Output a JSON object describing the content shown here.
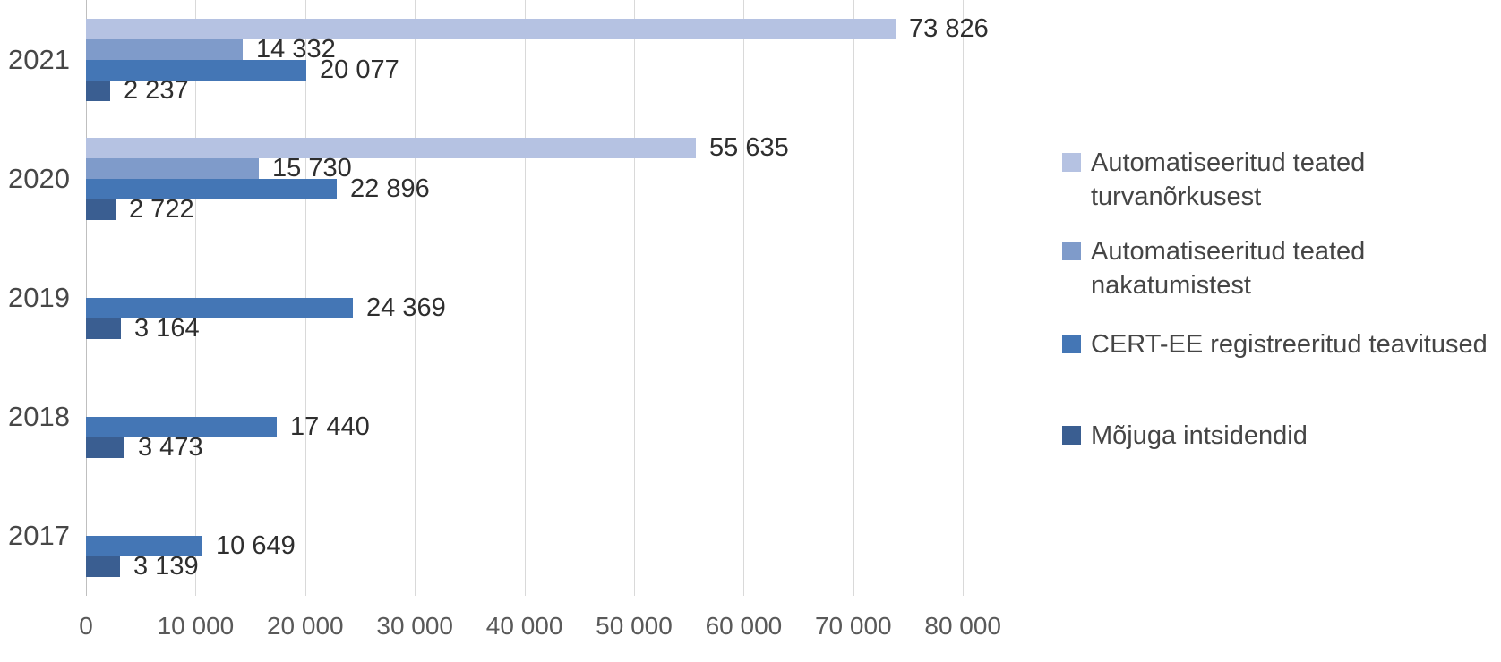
{
  "chart_data": {
    "type": "bar",
    "orientation": "horizontal",
    "title": "",
    "categories": [
      "2021",
      "2020",
      "2019",
      "2018",
      "2017"
    ],
    "series": [
      {
        "name": "Automatiseeritud teated turvanõrkusest",
        "color": "#b5c2e2",
        "values": [
          73826,
          55635,
          null,
          null,
          null
        ],
        "labels": [
          "73 826",
          "55 635",
          null,
          null,
          null
        ]
      },
      {
        "name": "Automatiseeritud teated nakatumistest",
        "color": "#7f9bca",
        "values": [
          14332,
          15730,
          null,
          null,
          null
        ],
        "labels": [
          "14 332",
          "15 730",
          null,
          null,
          null
        ]
      },
      {
        "name": "CERT-EE registreeritud teavitused",
        "color": "#4476b5",
        "values": [
          20077,
          22896,
          24369,
          17440,
          10649
        ],
        "labels": [
          "20 077",
          "22 896",
          "24 369",
          "17 440",
          "10 649"
        ]
      },
      {
        "name": "Mõjuga intsidendid",
        "color": "#3a5e91",
        "values": [
          2237,
          2722,
          3164,
          3473,
          3139
        ],
        "labels": [
          "2 237",
          "2 722",
          "3 164",
          "3 473",
          "3 139"
        ]
      }
    ],
    "x_axis": {
      "min": 0,
      "max": 80000,
      "tick_interval": 10000,
      "tick_labels": [
        "0",
        "10 000",
        "20 000",
        "30 000",
        "40 000",
        "50 000",
        "60 000",
        "70 000",
        "80 000"
      ],
      "grid": true
    },
    "legend": {
      "position": "right",
      "items": [
        {
          "label": "Automatiseeritud teated turvanõrkusest",
          "lines": [
            "Automatiseeritud teated",
            "turvanõrkusest"
          ],
          "color": "#b5c2e2"
        },
        {
          "label": "Automatiseeritud teated nakatumistest",
          "lines": [
            "Automatiseeritud teated",
            "nakatumistest"
          ],
          "color": "#7f9bca"
        },
        {
          "label": "CERT-EE registreeritud teavitused",
          "lines": [
            "CERT-EE registreeritud teavitused"
          ],
          "color": "#4476b5"
        },
        {
          "label": "Mõjuga intsidendid",
          "lines": [
            "Mõjuga intsidendid"
          ],
          "color": "#3a5e91"
        }
      ]
    },
    "colors": {
      "gridline": "#d9d9d9",
      "axis_line": "#bfbfbf",
      "data_label": "#2e2e2e",
      "axis_tick_label": "#595959",
      "category_label": "#474747",
      "legend_label": "#454545",
      "background": "#ffffff"
    }
  }
}
